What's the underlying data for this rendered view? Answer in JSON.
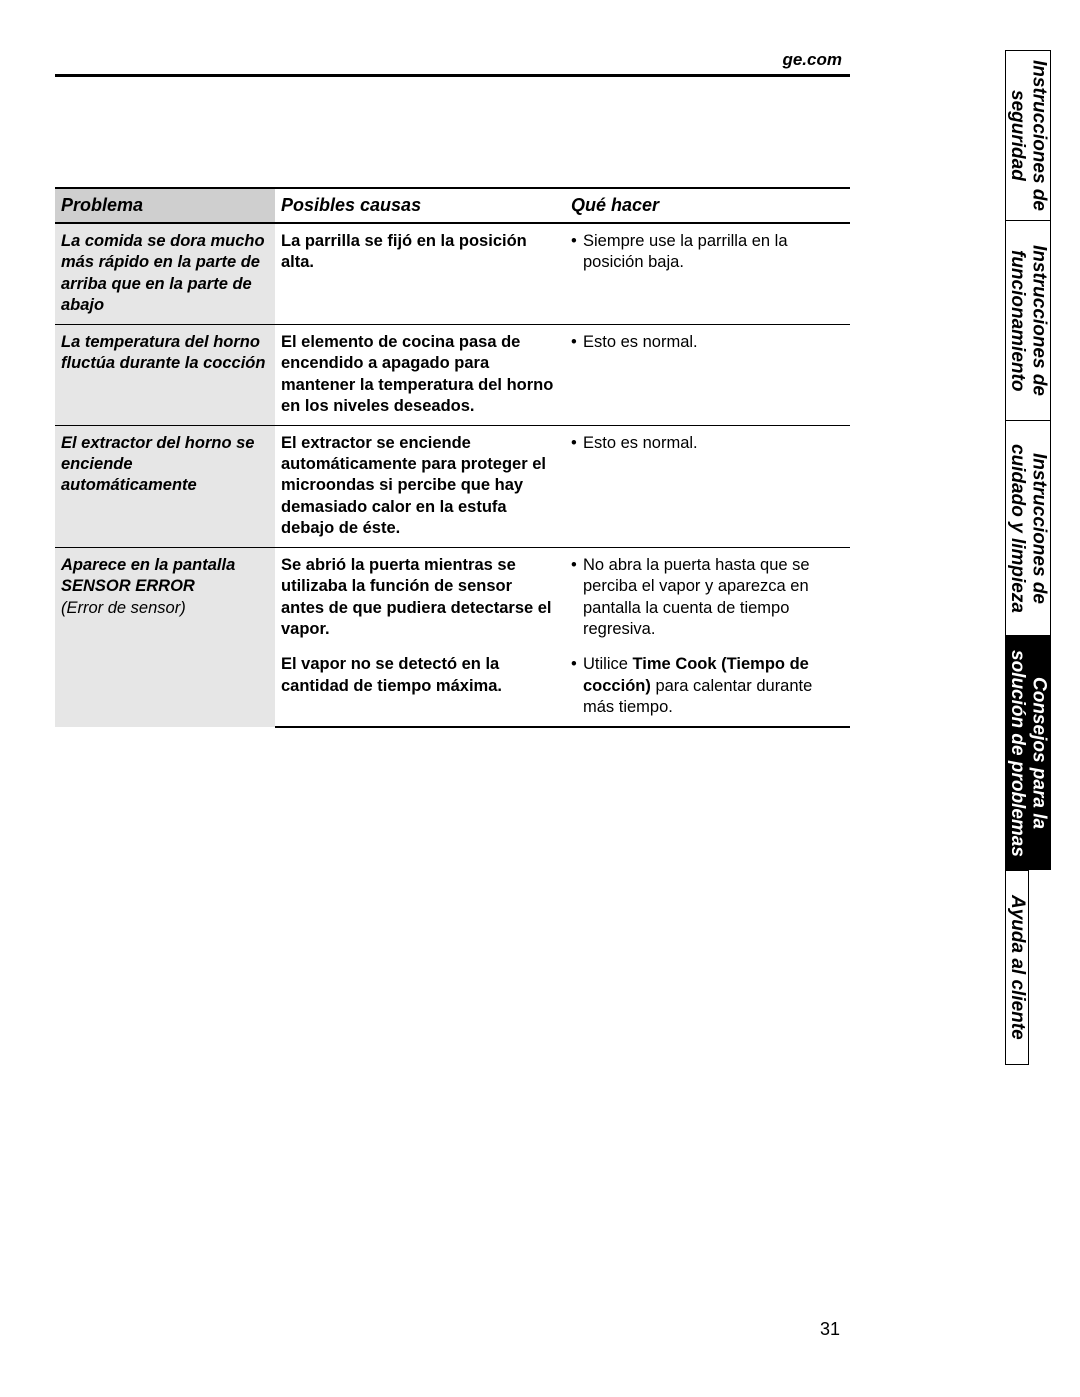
{
  "header": {
    "link": "ge.com"
  },
  "page_number": "31",
  "columns": {
    "problema": "Problema",
    "causas": "Posibles causas",
    "hacer": "Qué hacer"
  },
  "rows": {
    "r1": {
      "problema": "La comida se dora mucho más rápido en la parte de arriba que en la parte de abajo",
      "causas": "La parrilla se fijó en la posición alta.",
      "hacer": "Siempre use la parrilla en la posición baja."
    },
    "r2": {
      "problema": "La temperatura del horno fluctúa durante la cocción",
      "causas": "El elemento de cocina pasa de encendido a apagado para mantener la temperatura del horno en los niveles deseados.",
      "hacer": "Esto es normal."
    },
    "r3": {
      "problema": "El extractor del horno se enciende automáticamente",
      "causas": "El extractor se enciende automáticamente para proteger el microondas si percibe que hay demasiado calor en la estufa debajo de éste.",
      "hacer": "Esto es normal."
    },
    "r4": {
      "problema_l1": "Aparece en la pantalla",
      "problema_l2": "SENSOR ERROR",
      "problema_l3": "(Error de sensor)",
      "causas_a": "Se abrió la puerta mientras se utilizaba la función de sensor antes de que pudiera detectarse el vapor.",
      "hacer_a": "No abra la puerta hasta que se perciba el vapor y aparezca en pantalla la cuenta de tiempo regresiva.",
      "causas_b": "El vapor no se detectó en la cantidad de tiempo máxima.",
      "hacer_b_pre": "Utilice ",
      "hacer_b_bold": "Time Cook (Tiempo de cocción)",
      "hacer_b_post": " para calentar durante más tiempo."
    }
  },
  "tabs": {
    "t1": {
      "l1": "Instrucciones de",
      "l2": "seguridad"
    },
    "t2": {
      "l1": "Instrucciones de",
      "l2": "funcionamiento"
    },
    "t3": {
      "l1": "Instrucciones de",
      "l2": "cuidado y limpieza"
    },
    "t4": {
      "l1": "Consejos para la",
      "l2": "solución de problemas"
    },
    "t5": {
      "l1": "Ayuda al cliente"
    }
  },
  "tab_heights": {
    "t1": 170,
    "t2": 200,
    "t3": 215,
    "t4": 235,
    "t5": 195
  }
}
